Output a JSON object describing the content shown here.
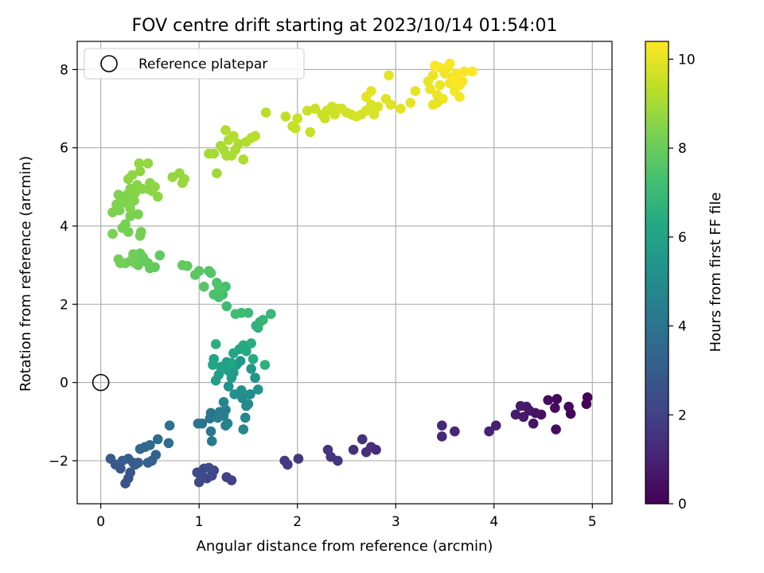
{
  "chart_data": {
    "type": "scatter",
    "title": "FOV centre drift starting at 2023/10/14 01:54:01",
    "xlabel": "Angular distance from reference (arcmin)",
    "ylabel": "Rotation from reference (arcmin)",
    "xlim": [
      -0.24,
      5.2
    ],
    "ylim": [
      -3.1,
      8.72
    ],
    "xticks": [
      0,
      1,
      2,
      3,
      4,
      5
    ],
    "xtick_labels": [
      "0",
      "1",
      "2",
      "3",
      "4",
      "5"
    ],
    "yticks": [
      -2,
      0,
      2,
      4,
      6,
      8
    ],
    "ytick_labels": [
      "−2",
      "0",
      "2",
      "4",
      "6",
      "8"
    ],
    "grid": true,
    "legend": {
      "position": "top-left",
      "entries": [
        "Reference platepar"
      ]
    },
    "reference_point": {
      "x": 0,
      "y": 0,
      "marker": "open-circle",
      "label": "Reference platepar"
    },
    "colorbar": {
      "label": "Hours from first FF file",
      "colormap": "viridis",
      "range": [
        0,
        10.4
      ],
      "ticks": [
        0,
        2,
        4,
        6,
        8,
        10
      ],
      "tick_labels": [
        "0",
        "2",
        "4",
        "6",
        "8",
        "10"
      ]
    },
    "points": [
      [
        4.95,
        -0.38,
        0.05
      ],
      [
        4.94,
        -0.55,
        0.1
      ],
      [
        4.78,
        -0.8,
        0.15
      ],
      [
        4.76,
        -0.62,
        0.2
      ],
      [
        4.64,
        -0.42,
        0.25
      ],
      [
        4.62,
        -0.65,
        0.3
      ],
      [
        4.55,
        -0.45,
        0.35
      ],
      [
        4.63,
        -1.2,
        0.4
      ],
      [
        4.48,
        -0.82,
        0.45
      ],
      [
        4.42,
        -0.78,
        0.5
      ],
      [
        4.4,
        -1.05,
        0.55
      ],
      [
        4.36,
        -0.72,
        0.6
      ],
      [
        4.33,
        -0.62,
        0.65
      ],
      [
        4.3,
        -0.88,
        0.7
      ],
      [
        4.27,
        -0.6,
        0.75
      ],
      [
        4.22,
        -0.82,
        0.8
      ],
      [
        4.02,
        -1.1,
        0.9
      ],
      [
        3.95,
        -1.25,
        1.0
      ],
      [
        3.6,
        -1.25,
        1.1
      ],
      [
        3.47,
        -1.38,
        1.15
      ],
      [
        3.47,
        -1.1,
        1.2
      ],
      [
        2.8,
        -1.72,
        1.3
      ],
      [
        2.75,
        -1.65,
        1.35
      ],
      [
        2.7,
        -1.78,
        1.4
      ],
      [
        2.66,
        -1.45,
        1.45
      ],
      [
        2.57,
        -1.72,
        1.5
      ],
      [
        2.41,
        -2.0,
        1.55
      ],
      [
        2.34,
        -1.9,
        1.6
      ],
      [
        2.31,
        -1.72,
        1.65
      ],
      [
        2.01,
        -1.95,
        1.7
      ],
      [
        1.9,
        -2.1,
        1.75
      ],
      [
        1.87,
        -2.0,
        1.8
      ],
      [
        1.33,
        -2.5,
        2.0
      ],
      [
        1.28,
        -2.42,
        2.05
      ],
      [
        1.15,
        -2.25,
        2.1
      ],
      [
        1.13,
        -2.38,
        2.15
      ],
      [
        1.08,
        -2.45,
        2.2
      ],
      [
        1.05,
        -2.2,
        2.25
      ],
      [
        1.02,
        -2.35,
        2.3
      ],
      [
        1.0,
        -2.55,
        2.35
      ],
      [
        0.98,
        -2.3,
        2.4
      ],
      [
        1.1,
        -2.18,
        2.45
      ],
      [
        0.28,
        -2.45,
        2.6
      ],
      [
        0.25,
        -2.58,
        2.65
      ],
      [
        0.3,
        -2.3,
        2.7
      ],
      [
        0.2,
        -2.2,
        2.75
      ],
      [
        0.33,
        -2.05,
        2.8
      ],
      [
        0.15,
        -2.1,
        2.85
      ],
      [
        0.28,
        -1.95,
        2.9
      ],
      [
        0.1,
        -1.95,
        2.95
      ],
      [
        0.35,
        -2.1,
        3.0
      ],
      [
        0.22,
        -2.0,
        3.05
      ],
      [
        0.38,
        -2.05,
        3.1
      ],
      [
        0.48,
        -2.05,
        3.2
      ],
      [
        0.52,
        -2.0,
        3.25
      ],
      [
        0.56,
        -1.85,
        3.3
      ],
      [
        0.45,
        -1.65,
        3.4
      ],
      [
        0.4,
        -1.7,
        3.45
      ],
      [
        0.5,
        -1.6,
        3.5
      ],
      [
        0.58,
        -1.45,
        3.6
      ],
      [
        0.69,
        -1.55,
        3.7
      ],
      [
        0.7,
        -1.1,
        3.8
      ],
      [
        0.99,
        -1.05,
        3.9
      ],
      [
        1.03,
        -1.05,
        3.95
      ],
      [
        1.12,
        -0.78,
        4.0
      ],
      [
        1.11,
        -0.92,
        4.05
      ],
      [
        1.12,
        -1.25,
        4.1
      ],
      [
        1.13,
        -1.5,
        4.15
      ],
      [
        1.27,
        -1.1,
        4.3
      ],
      [
        1.27,
        -0.7,
        4.35
      ],
      [
        1.21,
        -0.75,
        4.4
      ],
      [
        1.19,
        -0.9,
        4.45
      ],
      [
        1.25,
        -0.85,
        4.5
      ],
      [
        1.29,
        -1.05,
        4.6
      ],
      [
        1.25,
        -0.5,
        4.7
      ],
      [
        1.45,
        -1.2,
        4.75
      ],
      [
        1.47,
        -0.9,
        4.8
      ],
      [
        1.48,
        -0.6,
        4.85
      ],
      [
        1.44,
        -0.4,
        4.9
      ],
      [
        1.52,
        -0.3,
        5.0
      ],
      [
        1.5,
        -0.55,
        5.05
      ],
      [
        1.43,
        -0.2,
        5.1
      ],
      [
        1.36,
        -0.3,
        5.2
      ],
      [
        1.3,
        -0.1,
        5.25
      ],
      [
        1.6,
        -0.18,
        5.3
      ],
      [
        1.57,
        0.12,
        5.4
      ],
      [
        1.53,
        0.35,
        5.45
      ],
      [
        1.42,
        0.55,
        5.5
      ],
      [
        1.38,
        0.45,
        5.55
      ],
      [
        1.35,
        0.25,
        5.6
      ],
      [
        1.33,
        0.12,
        5.65
      ],
      [
        1.3,
        0.3,
        5.7
      ],
      [
        1.28,
        0.52,
        5.75
      ],
      [
        1.25,
        0.35,
        5.8
      ],
      [
        1.2,
        0.2,
        5.85
      ],
      [
        1.17,
        0.05,
        5.9
      ],
      [
        1.15,
        0.6,
        5.95
      ],
      [
        1.22,
        0.4,
        6.0
      ],
      [
        1.14,
        0.45,
        6.05
      ],
      [
        1.35,
        0.75,
        6.1
      ],
      [
        1.33,
        0.5,
        6.15
      ],
      [
        1.41,
        0.85,
        6.2
      ],
      [
        1.45,
        0.95,
        6.25
      ],
      [
        1.48,
        0.8,
        6.3
      ],
      [
        1.55,
        0.6,
        6.35
      ],
      [
        1.53,
        1.0,
        6.4
      ],
      [
        1.17,
        0.98,
        6.5
      ],
      [
        1.67,
        0.45,
        6.6
      ],
      [
        1.58,
        1.45,
        6.65
      ],
      [
        1.6,
        1.4,
        6.7
      ],
      [
        1.62,
        1.55,
        6.8
      ],
      [
        1.65,
        1.6,
        6.85
      ],
      [
        1.73,
        1.75,
        6.9
      ],
      [
        1.43,
        1.78,
        7.0
      ],
      [
        1.5,
        1.78,
        7.05
      ],
      [
        1.28,
        1.95,
        7.1
      ],
      [
        1.37,
        1.75,
        7.15
      ],
      [
        1.24,
        2.25,
        7.2
      ],
      [
        1.2,
        2.45,
        7.25
      ],
      [
        1.27,
        2.45,
        7.3
      ],
      [
        1.2,
        2.18,
        7.35
      ],
      [
        1.15,
        2.25,
        7.4
      ],
      [
        1.22,
        2.35,
        7.45
      ],
      [
        1.18,
        2.55,
        7.5
      ],
      [
        1.1,
        2.85,
        7.55
      ],
      [
        1.12,
        2.8,
        7.6
      ],
      [
        1.05,
        2.45,
        7.65
      ],
      [
        0.96,
        2.75,
        7.7
      ],
      [
        1.0,
        2.85,
        7.75
      ],
      [
        0.88,
        2.98,
        7.8
      ],
      [
        0.83,
        3.0,
        7.85
      ],
      [
        0.6,
        3.25,
        7.85
      ],
      [
        0.55,
        2.95,
        7.9
      ],
      [
        0.5,
        2.92,
        7.9
      ],
      [
        0.48,
        3.05,
        7.95
      ],
      [
        0.45,
        3.1,
        7.95
      ],
      [
        0.43,
        3.2,
        7.95
      ],
      [
        0.4,
        3.3,
        8.0
      ],
      [
        0.38,
        3.0,
        8.0
      ],
      [
        0.35,
        3.05,
        8.05
      ],
      [
        0.35,
        3.15,
        8.05
      ],
      [
        0.33,
        3.28,
        8.1
      ],
      [
        0.3,
        3.1,
        8.1
      ],
      [
        0.25,
        3.05,
        8.1
      ],
      [
        0.2,
        3.05,
        8.15
      ],
      [
        0.18,
        3.15,
        8.15
      ],
      [
        0.4,
        3.75,
        8.2
      ],
      [
        0.41,
        3.85,
        8.2
      ],
      [
        0.28,
        3.85,
        8.25
      ],
      [
        0.22,
        3.95,
        8.25
      ],
      [
        0.25,
        4.05,
        8.3
      ],
      [
        0.12,
        3.8,
        8.3
      ],
      [
        0.3,
        4.25,
        8.3
      ],
      [
        0.38,
        4.3,
        8.3
      ],
      [
        0.19,
        4.4,
        8.35
      ],
      [
        0.12,
        4.35,
        8.35
      ],
      [
        0.16,
        4.55,
        8.4
      ],
      [
        0.2,
        4.75,
        8.4
      ],
      [
        0.18,
        4.8,
        8.4
      ],
      [
        0.25,
        4.6,
        8.4
      ],
      [
        0.3,
        4.45,
        8.45
      ],
      [
        0.34,
        4.65,
        8.45
      ],
      [
        0.27,
        4.8,
        8.45
      ],
      [
        0.3,
        4.95,
        8.5
      ],
      [
        0.35,
        4.85,
        8.5
      ],
      [
        0.37,
        5.05,
        8.5
      ],
      [
        0.42,
        4.95,
        8.55
      ],
      [
        0.48,
        4.95,
        8.55
      ],
      [
        0.52,
        4.9,
        8.55
      ],
      [
        0.55,
        5.0,
        8.6
      ],
      [
        0.58,
        4.75,
        8.6
      ],
      [
        0.5,
        5.1,
        8.6
      ],
      [
        0.28,
        5.2,
        8.65
      ],
      [
        0.32,
        5.3,
        8.65
      ],
      [
        0.4,
        5.4,
        8.65
      ],
      [
        0.48,
        5.6,
        8.7
      ],
      [
        0.39,
        5.6,
        8.7
      ],
      [
        0.73,
        5.25,
        8.75
      ],
      [
        0.8,
        5.35,
        8.75
      ],
      [
        0.85,
        5.2,
        8.75
      ],
      [
        0.83,
        5.1,
        8.8
      ],
      [
        1.18,
        5.35,
        8.9
      ],
      [
        1.1,
        5.85,
        9.0
      ],
      [
        1.15,
        5.85,
        9.0
      ],
      [
        1.22,
        6.05,
        9.0
      ],
      [
        1.25,
        5.95,
        9.05
      ],
      [
        1.28,
        5.8,
        9.05
      ],
      [
        1.33,
        5.8,
        9.05
      ],
      [
        1.37,
        5.95,
        9.1
      ],
      [
        1.4,
        6.1,
        9.1
      ],
      [
        1.45,
        5.7,
        9.1
      ],
      [
        1.3,
        6.2,
        9.15
      ],
      [
        1.27,
        6.45,
        9.15
      ],
      [
        1.35,
        6.3,
        9.2
      ],
      [
        1.48,
        6.15,
        9.2
      ],
      [
        1.53,
        6.25,
        9.25
      ],
      [
        1.57,
        6.3,
        9.25
      ],
      [
        1.68,
        6.9,
        9.3
      ],
      [
        1.88,
        6.8,
        9.4
      ],
      [
        1.95,
        6.55,
        9.45
      ],
      [
        1.98,
        6.5,
        9.45
      ],
      [
        2.0,
        6.75,
        9.5
      ],
      [
        2.13,
        6.4,
        9.5
      ],
      [
        2.1,
        6.95,
        9.55
      ],
      [
        2.18,
        7.0,
        9.55
      ],
      [
        2.25,
        6.85,
        9.6
      ],
      [
        2.28,
        6.75,
        9.6
      ],
      [
        2.3,
        6.95,
        9.6
      ],
      [
        2.35,
        7.05,
        9.65
      ],
      [
        2.38,
        6.85,
        9.65
      ],
      [
        2.4,
        7.0,
        9.65
      ],
      [
        2.45,
        7.0,
        9.7
      ],
      [
        2.5,
        6.9,
        9.7
      ],
      [
        2.55,
        6.85,
        9.7
      ],
      [
        2.6,
        6.8,
        9.75
      ],
      [
        2.65,
        6.85,
        9.75
      ],
      [
        2.7,
        6.95,
        9.8
      ],
      [
        2.75,
        7.1,
        9.8
      ],
      [
        2.78,
        6.85,
        9.85
      ],
      [
        2.82,
        7.05,
        9.85
      ],
      [
        2.9,
        7.25,
        9.9
      ],
      [
        2.95,
        7.1,
        9.9
      ],
      [
        2.7,
        7.3,
        9.95
      ],
      [
        2.75,
        7.45,
        9.95
      ],
      [
        2.93,
        7.85,
        10.0
      ],
      [
        3.05,
        7.0,
        10.0
      ],
      [
        3.15,
        7.15,
        10.0
      ],
      [
        3.2,
        7.45,
        10.05
      ],
      [
        3.33,
        7.7,
        10.05
      ],
      [
        3.35,
        7.5,
        10.1
      ],
      [
        3.38,
        7.85,
        10.1
      ],
      [
        3.42,
        7.35,
        10.1
      ],
      [
        3.45,
        7.6,
        10.15
      ],
      [
        3.48,
        7.25,
        10.15
      ],
      [
        3.5,
        7.9,
        10.15
      ],
      [
        3.53,
        8.05,
        10.2
      ],
      [
        3.55,
        7.65,
        10.2
      ],
      [
        3.58,
        7.8,
        10.2
      ],
      [
        3.6,
        7.45,
        10.25
      ],
      [
        3.62,
        7.9,
        10.25
      ],
      [
        3.65,
        7.3,
        10.25
      ],
      [
        3.65,
        7.6,
        10.3
      ],
      [
        3.68,
        7.7,
        10.3
      ],
      [
        3.7,
        7.95,
        10.3
      ],
      [
        3.45,
        8.05,
        10.3
      ],
      [
        3.4,
        8.1,
        10.35
      ],
      [
        3.55,
        8.15,
        10.35
      ],
      [
        3.6,
        7.75,
        10.35
      ],
      [
        3.78,
        7.95,
        10.38
      ],
      [
        3.38,
        7.1,
        10.0
      ],
      [
        3.42,
        7.15,
        10.05
      ]
    ]
  }
}
